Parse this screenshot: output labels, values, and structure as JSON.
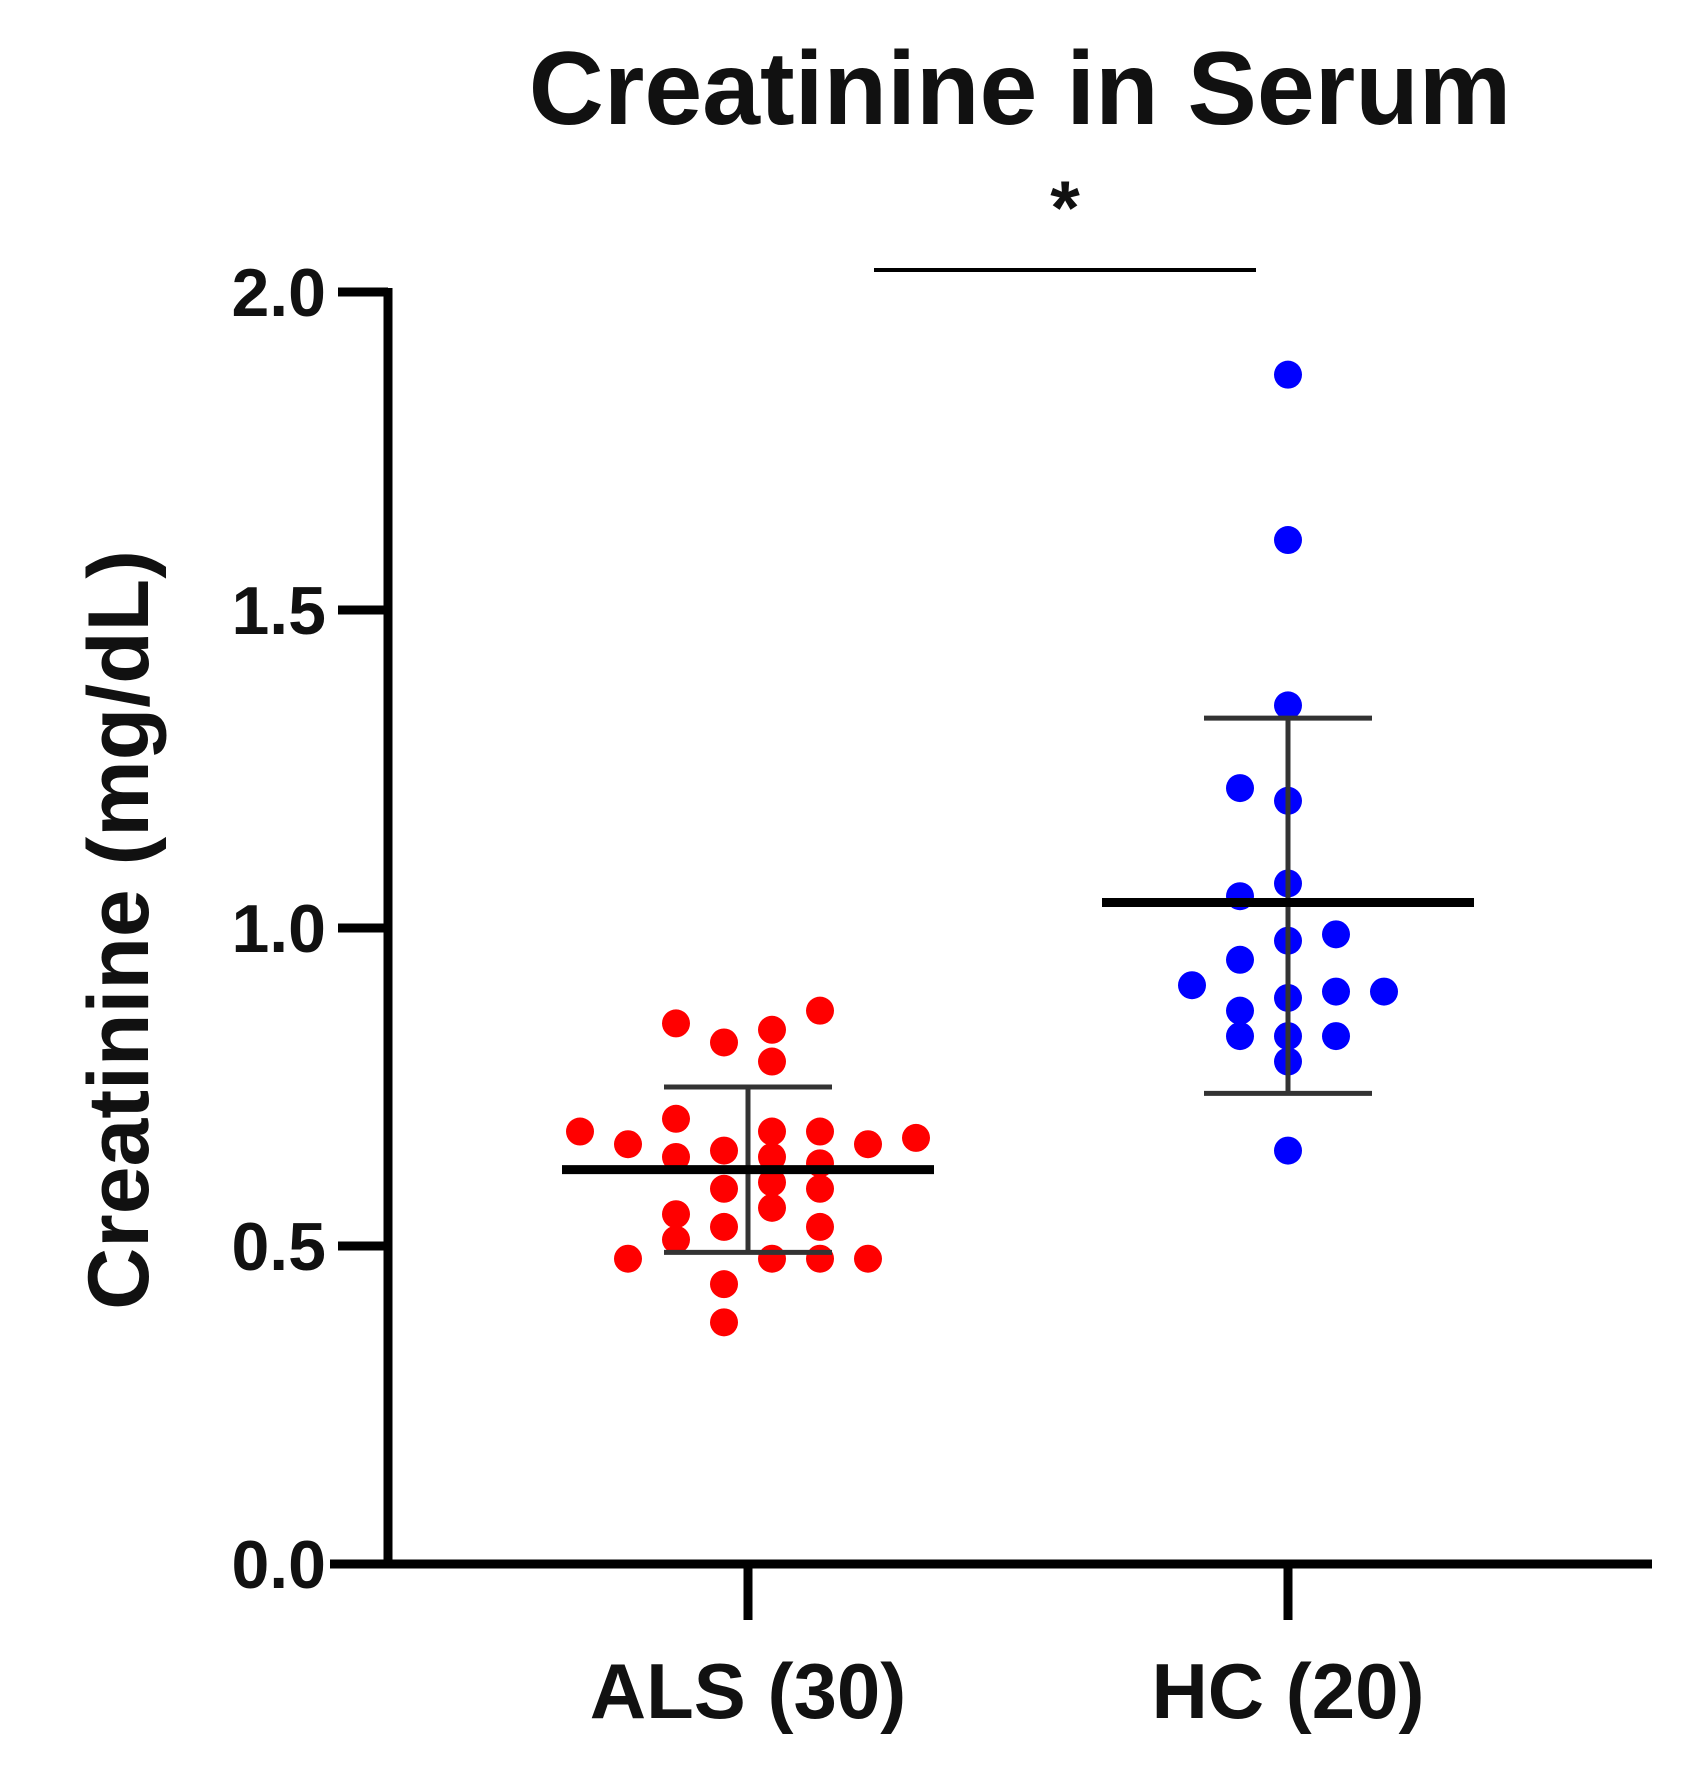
{
  "chart_data": {
    "type": "scatter",
    "title": "Creatinine in Serum",
    "ylabel": "Creatinine (mg/dL)",
    "ylim": [
      0,
      2.0
    ],
    "yticks": [
      "0.0",
      "0.5",
      "1.0",
      "1.5",
      "2.0"
    ],
    "categories": [
      "ALS (30)",
      "HC (20)"
    ],
    "significance": {
      "label": "*",
      "between": [
        "ALS (30)",
        "HC (20)"
      ]
    },
    "series": [
      {
        "category": "ALS (30)",
        "color": "#ff0000",
        "mean": 0.62,
        "sd_low": 0.49,
        "sd_high": 0.75,
        "points": [
          {
            "y": 0.85,
            "jitter": -1.5
          },
          {
            "y": 0.82,
            "jitter": -0.5
          },
          {
            "y": 0.84,
            "jitter": 0.5
          },
          {
            "y": 0.87,
            "jitter": 1.5
          },
          {
            "y": 0.79,
            "jitter": 0.5
          },
          {
            "y": 0.68,
            "jitter": -3.5
          },
          {
            "y": 0.7,
            "jitter": -1.5
          },
          {
            "y": 0.68,
            "jitter": 0.5
          },
          {
            "y": 0.68,
            "jitter": 1.5
          },
          {
            "y": 0.66,
            "jitter": -2.5
          },
          {
            "y": 0.66,
            "jitter": 2.5
          },
          {
            "y": 0.67,
            "jitter": 3.5
          },
          {
            "y": 0.64,
            "jitter": -1.5
          },
          {
            "y": 0.64,
            "jitter": 0.5
          },
          {
            "y": 0.65,
            "jitter": -0.5
          },
          {
            "y": 0.63,
            "jitter": 1.5
          },
          {
            "y": 0.6,
            "jitter": 0.5
          },
          {
            "y": 0.59,
            "jitter": -0.5
          },
          {
            "y": 0.59,
            "jitter": 1.5
          },
          {
            "y": 0.55,
            "jitter": -1.5
          },
          {
            "y": 0.56,
            "jitter": 0.5
          },
          {
            "y": 0.53,
            "jitter": -0.5
          },
          {
            "y": 0.53,
            "jitter": 1.5
          },
          {
            "y": 0.51,
            "jitter": -1.5
          },
          {
            "y": 0.48,
            "jitter": -2.5
          },
          {
            "y": 0.48,
            "jitter": 0.5
          },
          {
            "y": 0.48,
            "jitter": 1.5
          },
          {
            "y": 0.48,
            "jitter": 2.5
          },
          {
            "y": 0.44,
            "jitter": -0.5
          },
          {
            "y": 0.38,
            "jitter": -0.5
          }
        ]
      },
      {
        "category": "HC (20)",
        "color": "#0000ff",
        "mean": 1.04,
        "sd_low": 0.74,
        "sd_high": 1.33,
        "points": [
          {
            "y": 1.87,
            "jitter": 0
          },
          {
            "y": 1.61,
            "jitter": 0
          },
          {
            "y": 1.35,
            "jitter": 0
          },
          {
            "y": 1.22,
            "jitter": -1
          },
          {
            "y": 1.2,
            "jitter": 0
          },
          {
            "y": 1.07,
            "jitter": 0
          },
          {
            "y": 1.05,
            "jitter": -1
          },
          {
            "y": 0.99,
            "jitter": 1
          },
          {
            "y": 0.98,
            "jitter": 0
          },
          {
            "y": 0.95,
            "jitter": -1
          },
          {
            "y": 0.91,
            "jitter": -2
          },
          {
            "y": 0.9,
            "jitter": 1
          },
          {
            "y": 0.9,
            "jitter": 2
          },
          {
            "y": 0.89,
            "jitter": 0
          },
          {
            "y": 0.87,
            "jitter": -1
          },
          {
            "y": 0.83,
            "jitter": -1
          },
          {
            "y": 0.83,
            "jitter": 0
          },
          {
            "y": 0.83,
            "jitter": 1
          },
          {
            "y": 0.79,
            "jitter": 0
          },
          {
            "y": 0.65,
            "jitter": 0
          }
        ]
      }
    ]
  }
}
